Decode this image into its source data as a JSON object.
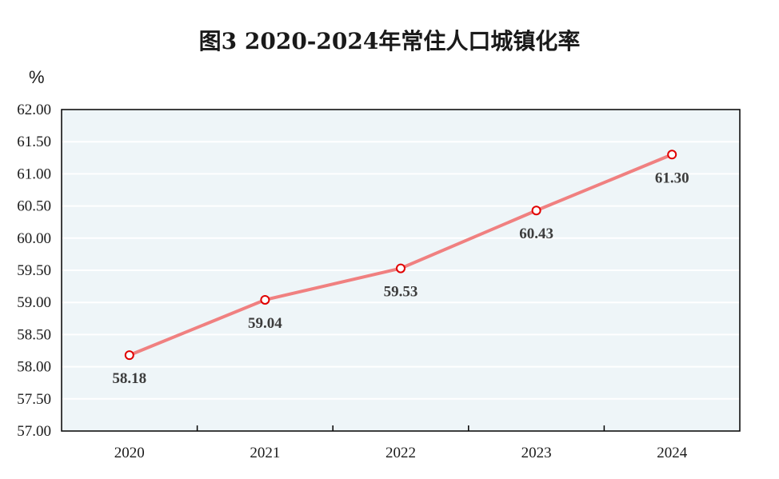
{
  "chart_data": {
    "type": "line",
    "title": "图3  2020-2024年常住人口城镇化率",
    "ylabel": "%",
    "xlabel": "",
    "categories": [
      "2020",
      "2021",
      "2022",
      "2023",
      "2024"
    ],
    "series": [
      {
        "values": [
          58.18,
          59.04,
          59.53,
          60.43,
          61.3
        ],
        "data_labels": [
          "58.18",
          "59.04",
          "59.53",
          "60.43",
          "61.30"
        ]
      }
    ],
    "ylim": [
      57.0,
      62.0
    ],
    "yticks": [
      57.0,
      57.5,
      58.0,
      58.5,
      59.0,
      59.5,
      60.0,
      60.5,
      61.0,
      61.5,
      62.0
    ],
    "ytick_labels": [
      "57.00",
      "57.50",
      "58.00",
      "58.50",
      "59.00",
      "59.50",
      "60.00",
      "60.50",
      "61.00",
      "61.50",
      "62.00"
    ],
    "grid": true,
    "legend": "none",
    "colors": {
      "line": "#f08080",
      "marker_edge": "#e00000",
      "plot_bg": "#eef5f8",
      "grid": "#ffffff",
      "axis": "#000000"
    }
  }
}
